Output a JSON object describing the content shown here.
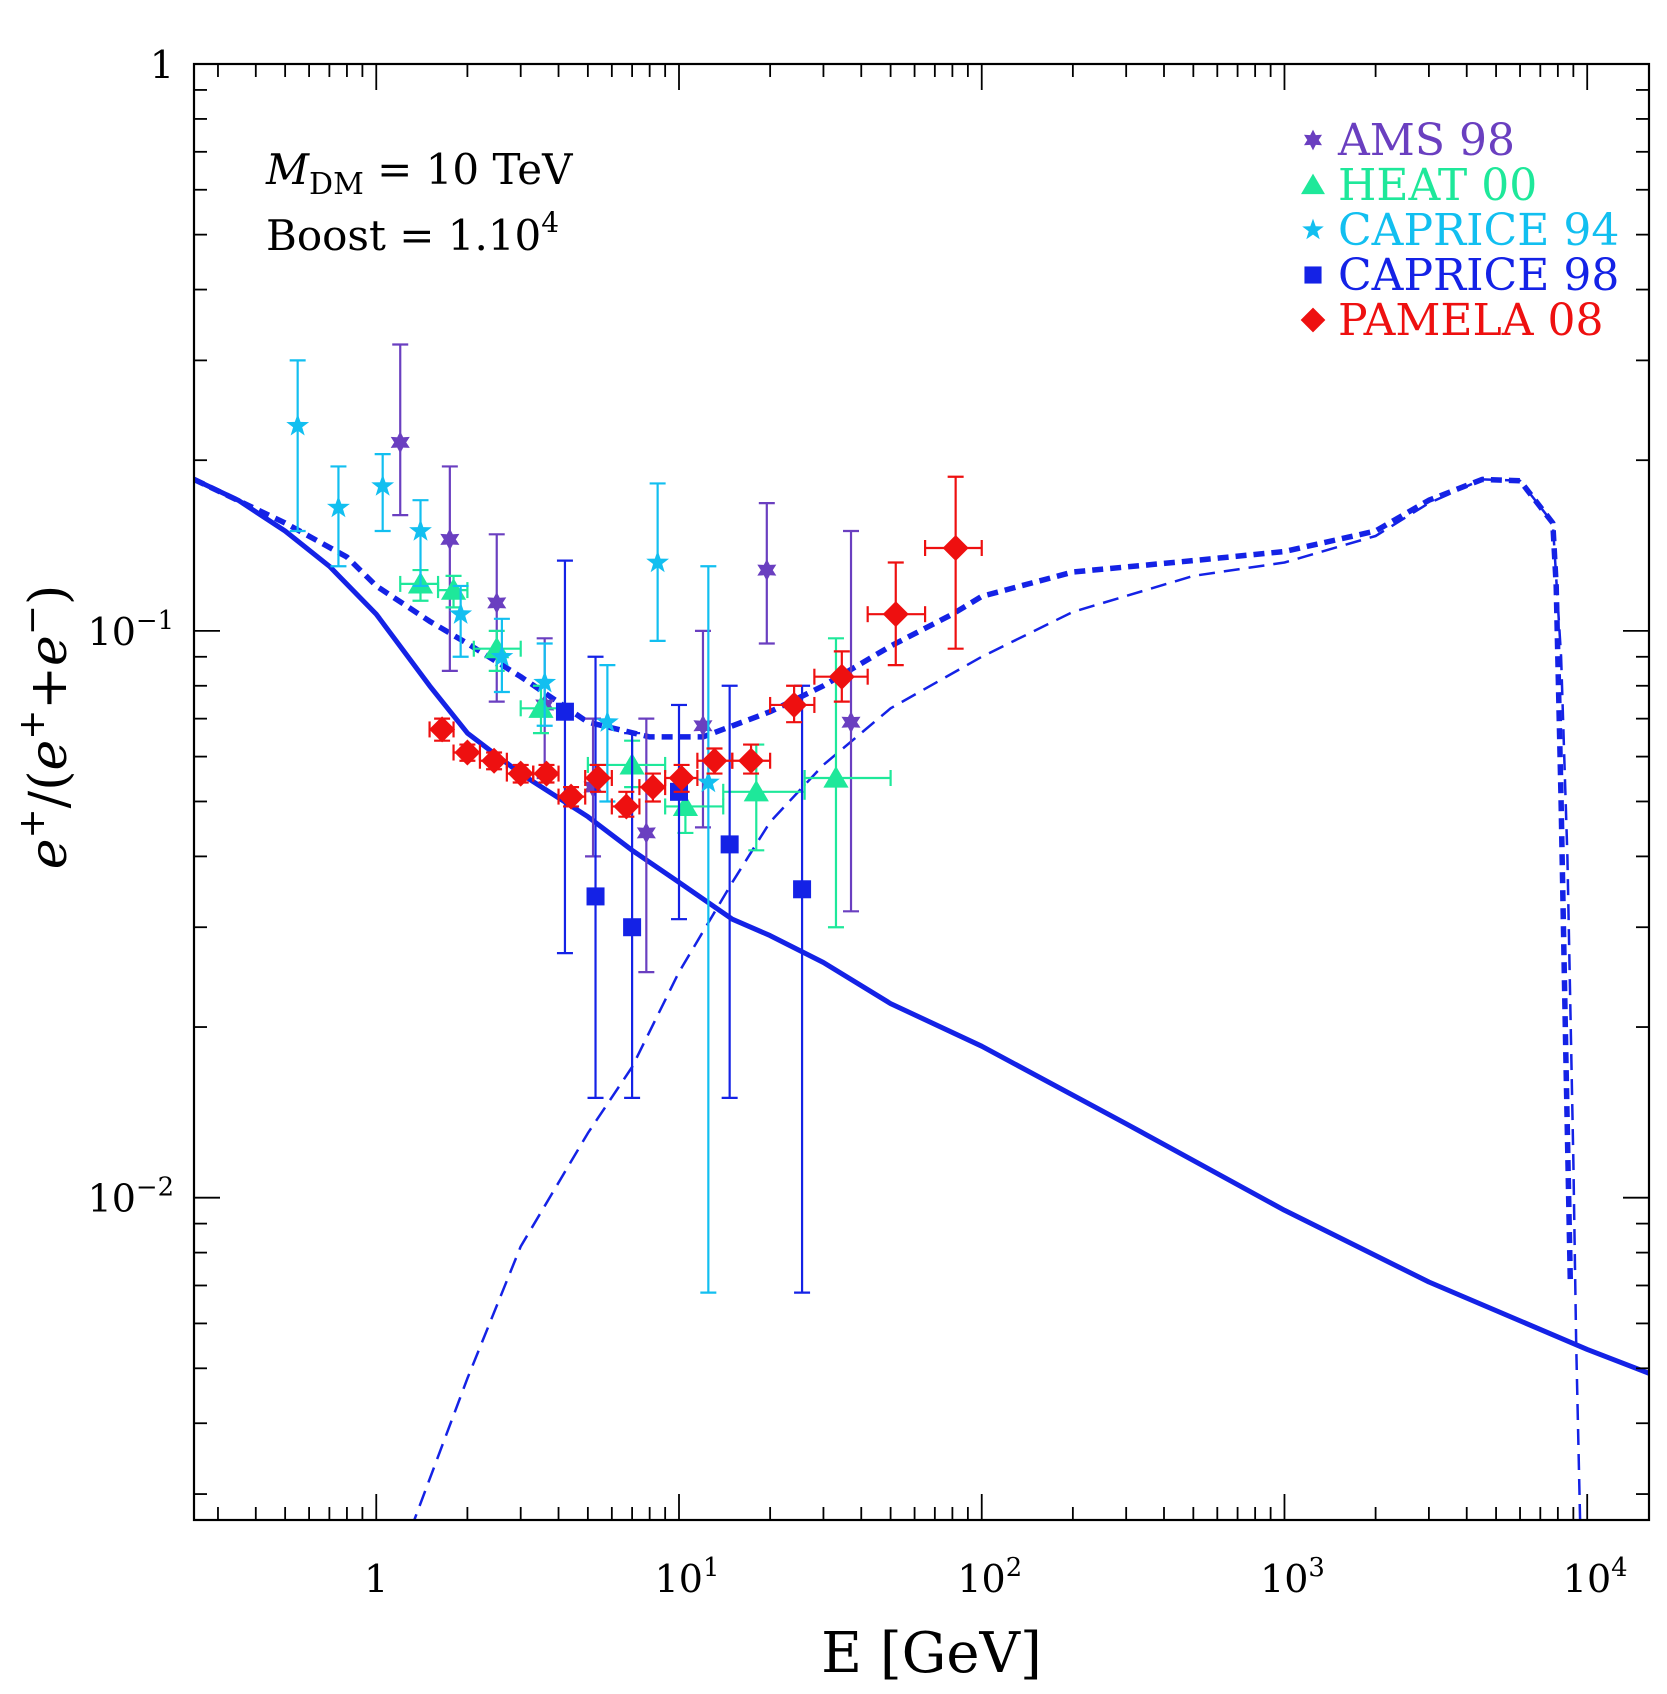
{
  "chart_data": {
    "type": "scatter",
    "title": "",
    "xlabel": "E [GeV]",
    "ylabel": "e+/(e+ + e-)",
    "xscale": "log",
    "yscale": "log",
    "xlim": [
      0.25,
      16000
    ],
    "ylim": [
      0.0027,
      1
    ],
    "grid": false,
    "legend_position": "top-right",
    "x_ticks": [
      {
        "value": 1,
        "base": "1",
        "exp": ""
      },
      {
        "value": 10,
        "base": "10",
        "exp": "1"
      },
      {
        "value": 100,
        "base": "10",
        "exp": "2"
      },
      {
        "value": 1000,
        "base": "10",
        "exp": "3"
      },
      {
        "value": 10000,
        "base": "10",
        "exp": "4"
      }
    ],
    "y_ticks": [
      {
        "value": 1,
        "base": "1",
        "exp": ""
      },
      {
        "value": 0.1,
        "base": "10",
        "exp": "−1"
      },
      {
        "value": 0.01,
        "base": "10",
        "exp": "−2"
      }
    ],
    "annotations": {
      "mass": {
        "symbol": "M",
        "sub": "DM",
        "rest": " = 10 TeV"
      },
      "boost": {
        "text": "Boost = 1.10",
        "sup": "4"
      }
    },
    "series": [
      {
        "name": "AMS 98",
        "color": "#6a3fc0",
        "marker": "star6",
        "points": [
          {
            "x": 1.2,
            "y": 0.215,
            "ylo": 0.16,
            "yhi": 0.32
          },
          {
            "x": 1.75,
            "y": 0.145,
            "ylo": 0.085,
            "yhi": 0.195
          },
          {
            "x": 2.5,
            "y": 0.112,
            "ylo": 0.075,
            "yhi": 0.148
          },
          {
            "x": 3.6,
            "y": 0.074,
            "ylo": 0.055,
            "yhi": 0.097
          },
          {
            "x": 5.2,
            "y": 0.053,
            "ylo": 0.04,
            "yhi": 0.07
          },
          {
            "x": 7.8,
            "y": 0.044,
            "ylo": 0.025,
            "yhi": 0.07
          },
          {
            "x": 12,
            "y": 0.068,
            "ylo": 0.045,
            "yhi": 0.1
          },
          {
            "x": 19.5,
            "y": 0.128,
            "ylo": 0.095,
            "yhi": 0.168
          },
          {
            "x": 37,
            "y": 0.069,
            "ylo": 0.032,
            "yhi": 0.15
          }
        ]
      },
      {
        "name": "HEAT 00",
        "color": "#1ee89a",
        "marker": "triangle",
        "points": [
          {
            "x": 1.4,
            "y": 0.121,
            "ylo": 0.113,
            "yhi": 0.128,
            "xlo": 1.2,
            "xhi": 1.6
          },
          {
            "x": 1.8,
            "y": 0.118,
            "ylo": 0.11,
            "yhi": 0.125,
            "xlo": 1.6,
            "xhi": 2.0
          },
          {
            "x": 2.5,
            "y": 0.093,
            "ylo": 0.085,
            "yhi": 0.1,
            "xlo": 2.1,
            "xhi": 3.0
          },
          {
            "x": 3.5,
            "y": 0.073,
            "ylo": 0.066,
            "yhi": 0.08,
            "xlo": 3.0,
            "xhi": 4.2
          },
          {
            "x": 7,
            "y": 0.058,
            "ylo": 0.053,
            "yhi": 0.064,
            "xlo": 5.0,
            "xhi": 9.0
          },
          {
            "x": 10.5,
            "y": 0.049,
            "ylo": 0.044,
            "yhi": 0.055,
            "xlo": 9.0,
            "xhi": 14.0
          },
          {
            "x": 18,
            "y": 0.052,
            "ylo": 0.041,
            "yhi": 0.063,
            "xlo": 14.0,
            "xhi": 26.0
          },
          {
            "x": 33,
            "y": 0.055,
            "ylo": 0.03,
            "yhi": 0.097,
            "xlo": 26.0,
            "xhi": 50.0
          }
        ]
      },
      {
        "name": "CAPRICE 94",
        "color": "#12bff0",
        "marker": "star5",
        "points": [
          {
            "x": 0.55,
            "y": 0.23,
            "ylo": 0.15,
            "yhi": 0.3
          },
          {
            "x": 0.75,
            "y": 0.165,
            "ylo": 0.13,
            "yhi": 0.195
          },
          {
            "x": 1.05,
            "y": 0.18,
            "ylo": 0.15,
            "yhi": 0.205
          },
          {
            "x": 1.4,
            "y": 0.15,
            "ylo": 0.12,
            "yhi": 0.17
          },
          {
            "x": 1.9,
            "y": 0.107,
            "ylo": 0.09,
            "yhi": 0.12
          },
          {
            "x": 2.6,
            "y": 0.09,
            "ylo": 0.078,
            "yhi": 0.105
          },
          {
            "x": 3.6,
            "y": 0.081,
            "ylo": 0.068,
            "yhi": 0.095
          },
          {
            "x": 5.8,
            "y": 0.069,
            "ylo": 0.05,
            "yhi": 0.087
          },
          {
            "x": 8.5,
            "y": 0.132,
            "ylo": 0.096,
            "yhi": 0.182
          },
          {
            "x": 12.5,
            "y": 0.054,
            "ylo": 0.0068,
            "yhi": 0.13
          }
        ]
      },
      {
        "name": "CAPRICE 98",
        "color": "#1422e6",
        "marker": "square",
        "points": [
          {
            "x": 4.2,
            "y": 0.072,
            "ylo": 0.027,
            "yhi": 0.133
          },
          {
            "x": 5.3,
            "y": 0.034,
            "ylo": 0.015,
            "yhi": 0.09
          },
          {
            "x": 7.0,
            "y": 0.03,
            "ylo": 0.015,
            "yhi": 0.066
          },
          {
            "x": 10,
            "y": 0.052,
            "ylo": 0.031,
            "yhi": 0.074
          },
          {
            "x": 14.7,
            "y": 0.042,
            "ylo": 0.015,
            "yhi": 0.08
          },
          {
            "x": 25.5,
            "y": 0.035,
            "ylo": 0.0068,
            "yhi": 0.08
          }
        ]
      },
      {
        "name": "PAMELA 08",
        "color": "#ee1010",
        "marker": "diamond",
        "points": [
          {
            "x": 1.65,
            "y": 0.067,
            "ylo": 0.064,
            "yhi": 0.07,
            "xlo": 1.5,
            "xhi": 1.8
          },
          {
            "x": 2.0,
            "y": 0.061,
            "ylo": 0.059,
            "yhi": 0.063,
            "xlo": 1.8,
            "xhi": 2.2
          },
          {
            "x": 2.45,
            "y": 0.059,
            "ylo": 0.057,
            "yhi": 0.061,
            "xlo": 2.2,
            "xhi": 2.7
          },
          {
            "x": 3.0,
            "y": 0.056,
            "ylo": 0.054,
            "yhi": 0.058,
            "xlo": 2.7,
            "xhi": 3.3
          },
          {
            "x": 3.65,
            "y": 0.056,
            "ylo": 0.054,
            "yhi": 0.058,
            "xlo": 3.3,
            "xhi": 4.0
          },
          {
            "x": 4.4,
            "y": 0.051,
            "ylo": 0.049,
            "yhi": 0.053,
            "xlo": 4.0,
            "xhi": 4.9
          },
          {
            "x": 5.4,
            "y": 0.055,
            "ylo": 0.052,
            "yhi": 0.058,
            "xlo": 4.9,
            "xhi": 6.0
          },
          {
            "x": 6.7,
            "y": 0.049,
            "ylo": 0.047,
            "yhi": 0.052,
            "xlo": 6.0,
            "xhi": 7.4
          },
          {
            "x": 8.2,
            "y": 0.053,
            "ylo": 0.05,
            "yhi": 0.056,
            "xlo": 7.4,
            "xhi": 9.0
          },
          {
            "x": 10.2,
            "y": 0.055,
            "ylo": 0.052,
            "yhi": 0.058,
            "xlo": 9.0,
            "xhi": 11.5
          },
          {
            "x": 13.1,
            "y": 0.059,
            "ylo": 0.056,
            "yhi": 0.062,
            "xlo": 11.5,
            "xhi": 15.0
          },
          {
            "x": 17.3,
            "y": 0.059,
            "ylo": 0.056,
            "yhi": 0.063,
            "xlo": 15.0,
            "xhi": 20.0
          },
          {
            "x": 24.0,
            "y": 0.074,
            "ylo": 0.069,
            "yhi": 0.08,
            "xlo": 20.0,
            "xhi": 28.0
          },
          {
            "x": 34.5,
            "y": 0.083,
            "ylo": 0.075,
            "yhi": 0.092,
            "xlo": 28.0,
            "xhi": 42.0
          },
          {
            "x": 52.0,
            "y": 0.107,
            "ylo": 0.087,
            "yhi": 0.132,
            "xlo": 42.0,
            "xhi": 65.0
          },
          {
            "x": 82.0,
            "y": 0.14,
            "ylo": 0.093,
            "yhi": 0.187,
            "xlo": 65.0,
            "xhi": 100.0
          }
        ]
      }
    ],
    "curves": [
      {
        "id": "background",
        "style": "solid",
        "color": "#1422e6",
        "points": [
          [
            0.25,
            0.185
          ],
          [
            0.35,
            0.17
          ],
          [
            0.5,
            0.15
          ],
          [
            0.7,
            0.13
          ],
          [
            1,
            0.107
          ],
          [
            1.5,
            0.08
          ],
          [
            2,
            0.066
          ],
          [
            3,
            0.056
          ],
          [
            5,
            0.047
          ],
          [
            7,
            0.041
          ],
          [
            10,
            0.036
          ],
          [
            15,
            0.031
          ],
          [
            20,
            0.029
          ],
          [
            30,
            0.026
          ],
          [
            50,
            0.022
          ],
          [
            100,
            0.0185
          ],
          [
            300,
            0.0135
          ],
          [
            1000,
            0.0095
          ],
          [
            3000,
            0.0071
          ],
          [
            10000,
            0.0054
          ],
          [
            16000,
            0.0049
          ]
        ]
      },
      {
        "id": "total",
        "style": "thick-dashed",
        "color": "#1422e6",
        "points": [
          [
            0.25,
            0.185
          ],
          [
            0.5,
            0.155
          ],
          [
            0.8,
            0.135
          ],
          [
            1,
            0.12
          ],
          [
            1.5,
            0.104
          ],
          [
            2,
            0.095
          ],
          [
            3,
            0.083
          ],
          [
            5,
            0.069
          ],
          [
            8,
            0.065
          ],
          [
            12,
            0.065
          ],
          [
            20,
            0.072
          ],
          [
            30,
            0.08
          ],
          [
            50,
            0.094
          ],
          [
            80,
            0.107
          ],
          [
            100,
            0.115
          ],
          [
            200,
            0.127
          ],
          [
            500,
            0.133
          ],
          [
            1000,
            0.138
          ],
          [
            2000,
            0.15
          ],
          [
            3000,
            0.17
          ],
          [
            4500,
            0.185
          ],
          [
            6000,
            0.184
          ],
          [
            7700,
            0.155
          ],
          [
            7900,
            0.12
          ],
          [
            8200,
            0.05
          ],
          [
            8500,
            0.018
          ],
          [
            8800,
            0.007
          ]
        ]
      },
      {
        "id": "signal",
        "style": "dashed",
        "color": "#1422e6",
        "points": [
          [
            1.3,
            0.0026
          ],
          [
            2,
            0.0048
          ],
          [
            3,
            0.0082
          ],
          [
            5,
            0.013
          ],
          [
            7,
            0.017
          ],
          [
            10,
            0.025
          ],
          [
            15,
            0.036
          ],
          [
            20,
            0.046
          ],
          [
            30,
            0.058
          ],
          [
            50,
            0.073
          ],
          [
            100,
            0.09
          ],
          [
            200,
            0.108
          ],
          [
            500,
            0.125
          ],
          [
            1000,
            0.132
          ],
          [
            2000,
            0.147
          ],
          [
            3000,
            0.168
          ],
          [
            4500,
            0.185
          ],
          [
            6000,
            0.184
          ],
          [
            7700,
            0.155
          ],
          [
            8200,
            0.09
          ],
          [
            8600,
            0.04
          ],
          [
            9000,
            0.0115
          ],
          [
            9200,
            0.0055
          ],
          [
            9500,
            0.0025
          ]
        ]
      }
    ]
  }
}
